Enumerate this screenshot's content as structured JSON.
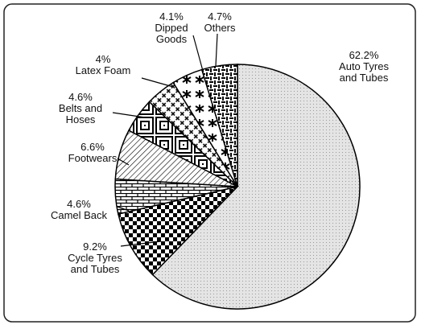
{
  "chart_data": {
    "type": "pie",
    "categories": [
      "Auto Tyres\nand Tubes",
      "Cycle Tyres\nand Tubes",
      "Camel Back",
      "Footwears",
      "Belts and\nHoses",
      "Latex Foam",
      "Dipped\nGoods",
      "Others"
    ],
    "values": [
      62.2,
      9.2,
      4.6,
      6.6,
      4.6,
      4,
      4.1,
      4.7
    ],
    "value_labels": [
      "62.2%",
      "9.2%",
      "4.6%",
      "6.6%",
      "4.6%",
      "4%",
      "4.1%",
      "4.7%"
    ]
  }
}
